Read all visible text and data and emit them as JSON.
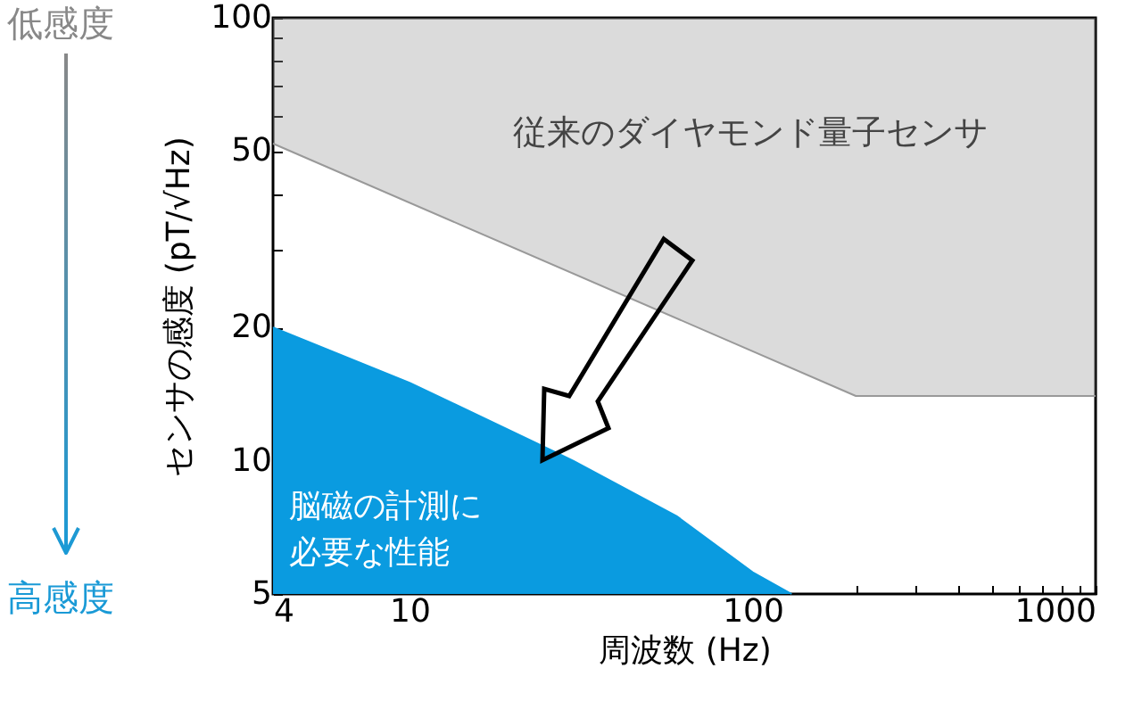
{
  "chart_data": {
    "type": "area",
    "xlabel": "周波数 (Hz)",
    "ylabel": "センサの感度 (pT/√Hz)",
    "log": "xy",
    "grid": false,
    "xlim": [
      4,
      1000
    ],
    "ylim": [
      5,
      100
    ],
    "xticks": [
      4,
      {
        "value": 5,
        "label": null
      },
      {
        "value": 6,
        "label": null
      },
      {
        "value": 7,
        "label": null
      },
      {
        "value": 8,
        "label": null
      },
      {
        "value": 9,
        "label": null
      },
      10,
      {
        "value": 20,
        "label": null
      },
      {
        "value": 30,
        "label": null
      },
      {
        "value": 40,
        "label": null
      },
      {
        "value": 50,
        "label": null
      },
      {
        "value": 60,
        "label": null
      },
      {
        "value": 70,
        "label": null
      },
      {
        "value": 80,
        "label": null
      },
      {
        "value": 90,
        "label": null
      },
      100,
      {
        "value": 200,
        "label": null
      },
      {
        "value": 300,
        "label": null
      },
      {
        "value": 400,
        "label": null
      },
      {
        "value": 500,
        "label": null
      },
      {
        "value": 600,
        "label": null
      },
      {
        "value": 700,
        "label": null
      },
      {
        "value": 800,
        "label": null
      },
      {
        "value": 900,
        "label": null
      },
      1000
    ],
    "yticks": [
      5,
      {
        "value": 6,
        "label": null
      },
      {
        "value": 7,
        "label": null
      },
      {
        "value": 8,
        "label": null
      },
      {
        "value": 9,
        "label": null
      },
      10,
      20,
      {
        "value": 30,
        "label": null
      },
      {
        "value": 40,
        "label": null
      },
      50,
      {
        "value": 60,
        "label": null
      },
      {
        "value": 70,
        "label": null
      },
      {
        "value": 80,
        "label": null
      },
      {
        "value": 90,
        "label": null
      },
      100
    ],
    "series": [
      {
        "name": "脳磁の計測に必要な性能",
        "color": "#0a9be0",
        "x": [
          4,
          10,
          30,
          60,
          100,
          130
        ],
        "values": [
          20,
          15,
          10,
          7.5,
          5.6,
          5
        ]
      },
      {
        "name": "従来のダイヤモンド量子センサ",
        "type": "line",
        "color": "#999999",
        "x": [
          4,
          200,
          1000
        ],
        "values": [
          52,
          14,
          14
        ],
        "lower": [
          52,
          14,
          14
        ],
        "upper": [
          100,
          100,
          100
        ]
      }
    ],
    "annotations": [
      "低感度",
      "高感度"
    ]
  }
}
